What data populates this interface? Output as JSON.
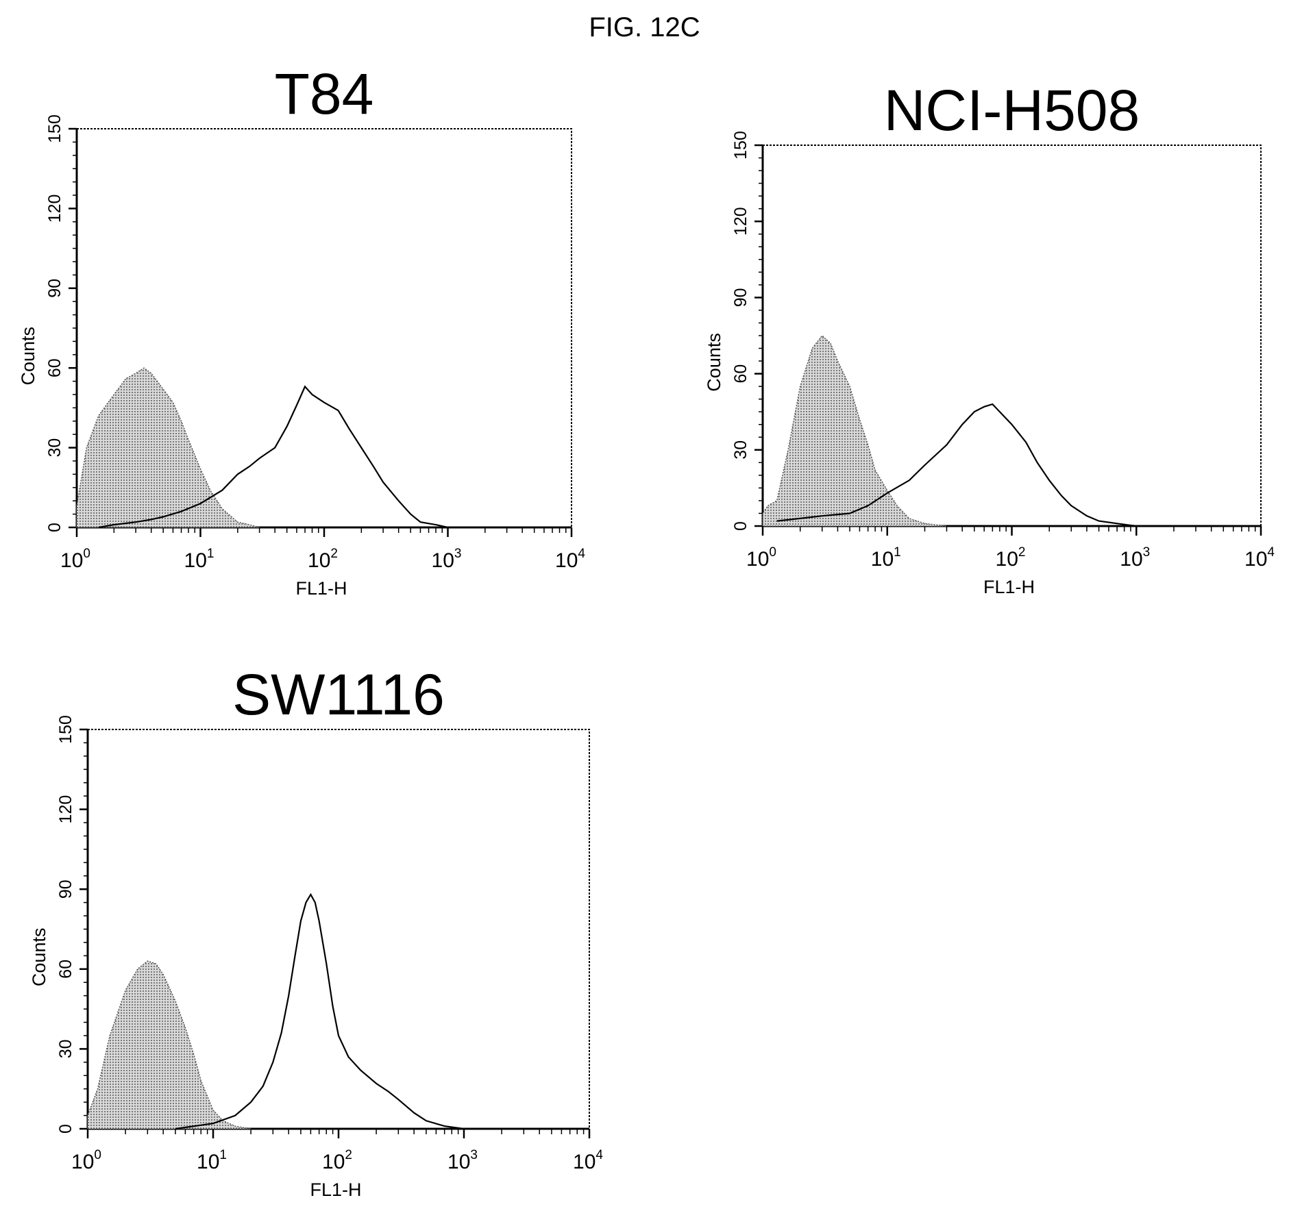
{
  "figure_label": "FIG. 12C",
  "styles": {
    "fill_pattern_color": "#777777",
    "line_color": "#000000",
    "background": "#ffffff"
  },
  "chart_data": [
    {
      "type": "area",
      "title": "T84",
      "xlabel": "FL1-H",
      "ylabel": "Counts",
      "x_scale": "log",
      "xlim": [
        1,
        10000
      ],
      "ylim": [
        0,
        150
      ],
      "x_ticks": [
        {
          "base": "10",
          "exp": "0"
        },
        {
          "base": "10",
          "exp": "1"
        },
        {
          "base": "10",
          "exp": "2"
        },
        {
          "base": "10",
          "exp": "3"
        },
        {
          "base": "10",
          "exp": "4"
        }
      ],
      "y_ticks": [
        "0",
        "30",
        "60",
        "90",
        "120",
        "150"
      ],
      "series": [
        {
          "style": "filled",
          "x": [
            1,
            1.2,
            1.5,
            2,
            2.5,
            3,
            3.5,
            4,
            5,
            6,
            7,
            8,
            10,
            12,
            15,
            20,
            25,
            30
          ],
          "y": [
            8,
            30,
            42,
            50,
            56,
            58,
            60,
            58,
            52,
            47,
            40,
            33,
            22,
            14,
            7,
            2,
            1,
            0
          ]
        },
        {
          "style": "outline",
          "x": [
            1.5,
            2,
            3,
            4,
            5,
            7,
            10,
            15,
            20,
            25,
            30,
            40,
            50,
            60,
            70,
            80,
            100,
            130,
            160,
            200,
            250,
            300,
            400,
            500,
            600,
            800,
            1000
          ],
          "y": [
            0,
            1,
            2,
            3,
            4,
            6,
            9,
            14,
            20,
            23,
            26,
            30,
            38,
            46,
            53,
            50,
            47,
            44,
            37,
            30,
            23,
            17,
            10,
            5,
            2,
            1,
            0
          ]
        }
      ]
    },
    {
      "type": "area",
      "title": "NCI-H508",
      "xlabel": "FL1-H",
      "ylabel": "Counts",
      "x_scale": "log",
      "xlim": [
        1,
        10000
      ],
      "ylim": [
        0,
        150
      ],
      "x_ticks": [
        {
          "base": "10",
          "exp": "0"
        },
        {
          "base": "10",
          "exp": "1"
        },
        {
          "base": "10",
          "exp": "2"
        },
        {
          "base": "10",
          "exp": "3"
        },
        {
          "base": "10",
          "exp": "4"
        }
      ],
      "y_ticks": [
        "0",
        "30",
        "60",
        "90",
        "120",
        "150"
      ],
      "series": [
        {
          "style": "filled",
          "x": [
            1,
            1.1,
            1.3,
            1.6,
            2,
            2.5,
            3,
            3.5,
            4,
            5,
            6,
            7,
            8,
            10,
            12,
            15,
            20,
            30
          ],
          "y": [
            5,
            8,
            10,
            30,
            55,
            70,
            75,
            72,
            65,
            55,
            42,
            32,
            22,
            14,
            8,
            3,
            1,
            0
          ]
        },
        {
          "style": "outline",
          "x": [
            1.3,
            2,
            3,
            5,
            7,
            10,
            15,
            20,
            30,
            40,
            50,
            60,
            70,
            80,
            100,
            130,
            160,
            200,
            250,
            300,
            400,
            500,
            700,
            1000
          ],
          "y": [
            2,
            3,
            4,
            5,
            8,
            13,
            18,
            24,
            32,
            40,
            45,
            47,
            48,
            45,
            40,
            33,
            25,
            18,
            12,
            8,
            4,
            2,
            1,
            0
          ]
        }
      ]
    },
    {
      "type": "area",
      "title": "SW1116",
      "xlabel": "FL1-H",
      "ylabel": "Counts",
      "x_scale": "log",
      "xlim": [
        1,
        10000
      ],
      "ylim": [
        0,
        150
      ],
      "x_ticks": [
        {
          "base": "10",
          "exp": "0"
        },
        {
          "base": "10",
          "exp": "1"
        },
        {
          "base": "10",
          "exp": "2"
        },
        {
          "base": "10",
          "exp": "3"
        },
        {
          "base": "10",
          "exp": "4"
        }
      ],
      "y_ticks": [
        "0",
        "30",
        "60",
        "90",
        "120",
        "150"
      ],
      "series": [
        {
          "style": "filled",
          "x": [
            1,
            1.2,
            1.5,
            2,
            2.5,
            3,
            3.5,
            4,
            5,
            6,
            7,
            8,
            10,
            12,
            15,
            20
          ],
          "y": [
            5,
            15,
            35,
            52,
            60,
            63,
            62,
            58,
            48,
            38,
            28,
            18,
            7,
            3,
            1,
            0
          ]
        },
        {
          "style": "outline",
          "x": [
            5,
            10,
            15,
            20,
            25,
            30,
            35,
            40,
            45,
            50,
            55,
            60,
            65,
            70,
            80,
            90,
            100,
            120,
            150,
            200,
            250,
            300,
            400,
            500,
            700,
            1000
          ],
          "y": [
            0,
            2,
            5,
            10,
            16,
            25,
            36,
            50,
            65,
            78,
            85,
            88,
            85,
            78,
            62,
            46,
            35,
            27,
            22,
            17,
            14,
            11,
            6,
            3,
            1,
            0
          ]
        }
      ]
    }
  ]
}
